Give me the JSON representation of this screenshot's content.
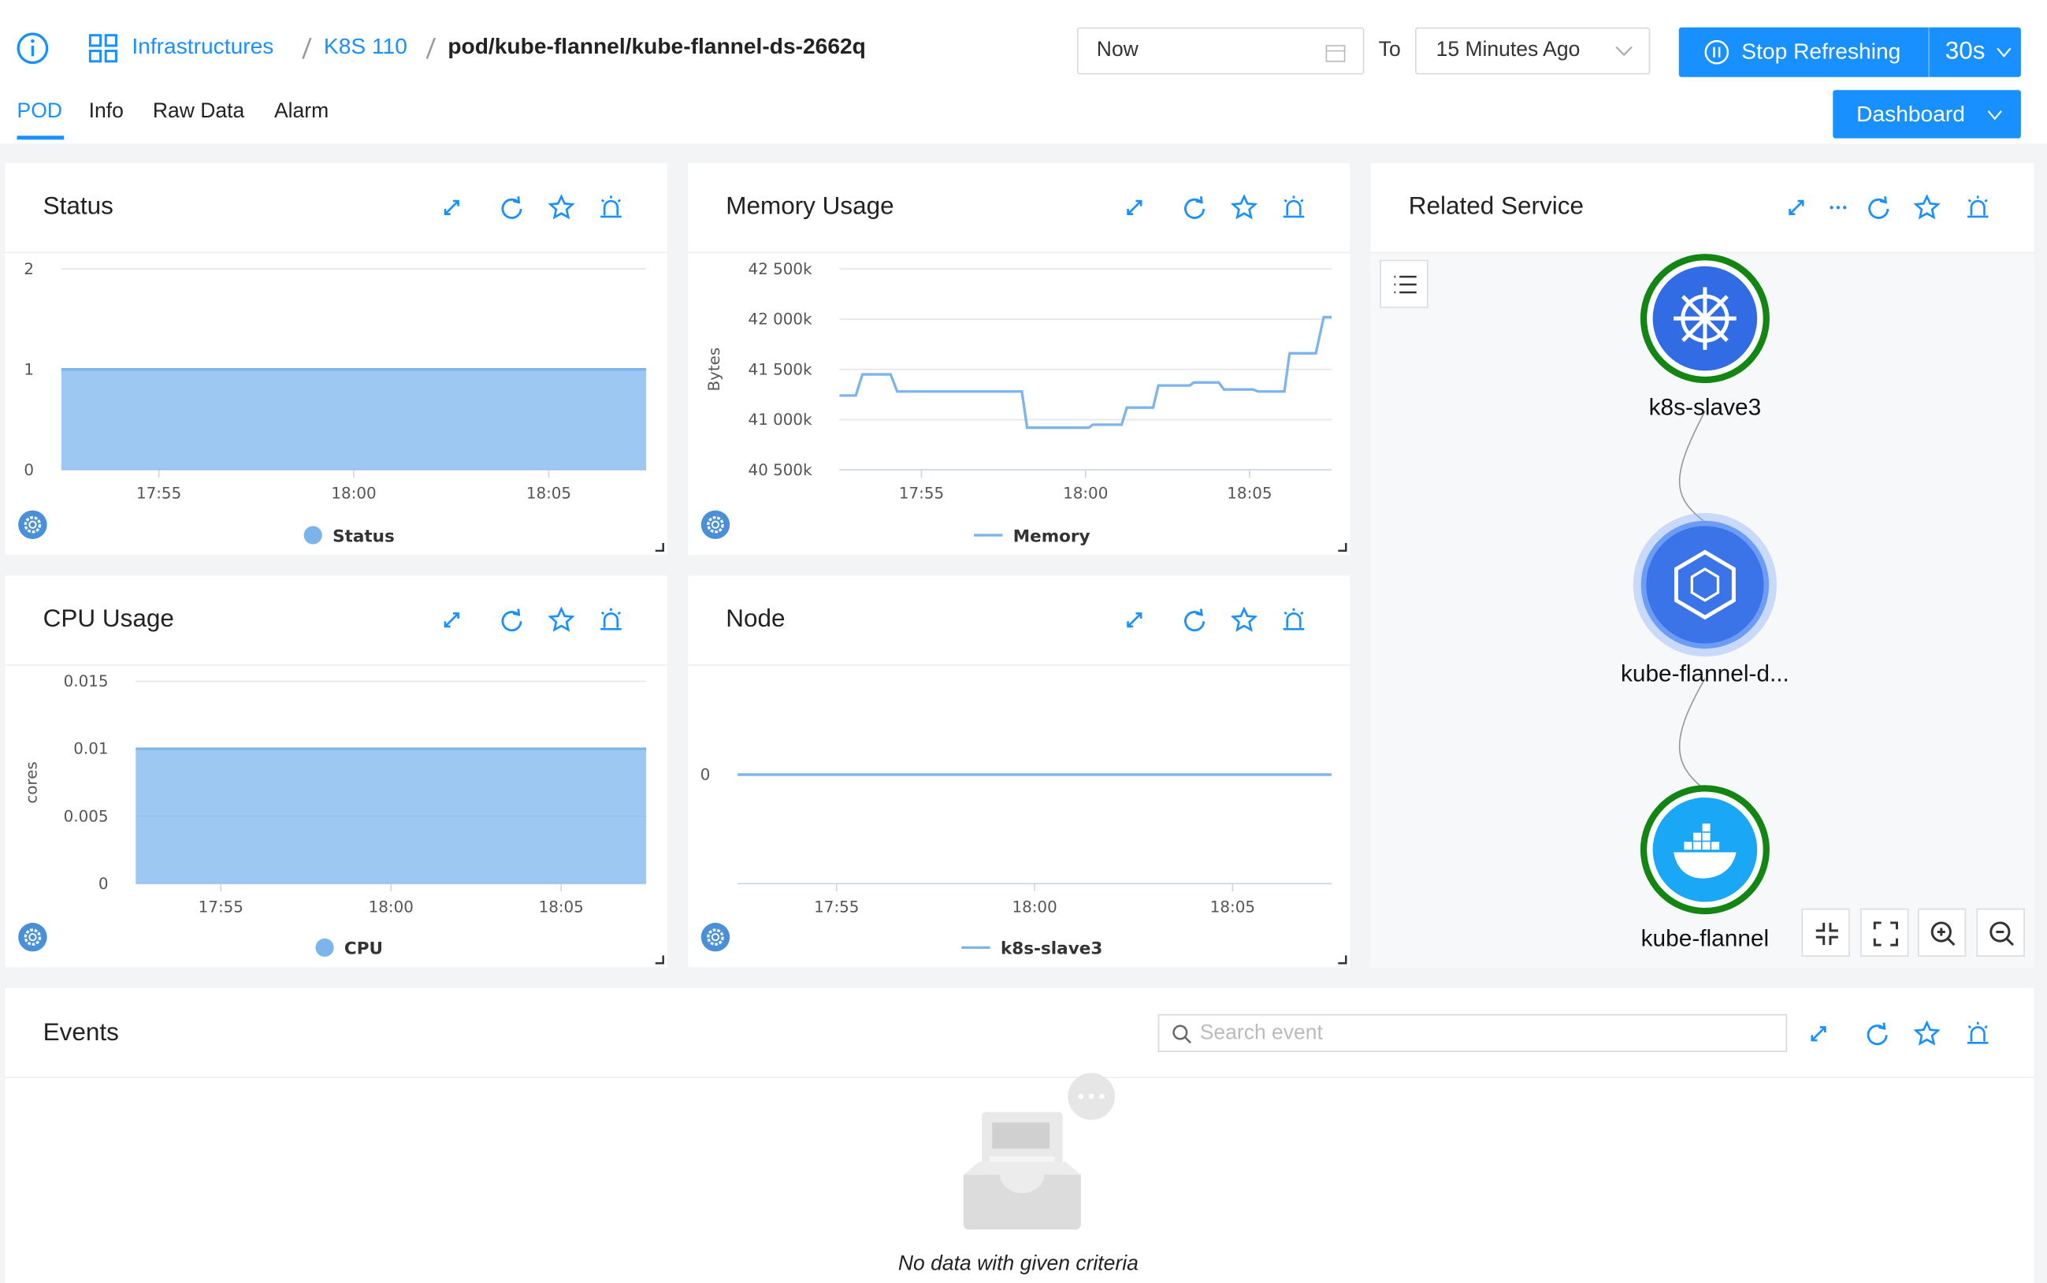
{
  "header": {
    "breadcrumb": [
      "Infrastructures",
      "K8S 110",
      "pod/kube-flannel/kube-flannel-ds-2662q"
    ],
    "time_from": "Now",
    "time_to_label": "To",
    "time_to": "15 Minutes Ago",
    "refresh_button": "Stop Refreshing",
    "refresh_interval": "30s",
    "dashboard_button": "Dashboard"
  },
  "tabs": [
    "POD",
    "Info",
    "Raw Data",
    "Alarm"
  ],
  "panels": [
    {
      "title": "Status",
      "chart": {
        "type": "area",
        "x": [
          1072.5,
          1073.5,
          1074.5,
          1075.5,
          1076.5,
          1077.5,
          1078.5,
          1079.5,
          1080.5,
          1081.5,
          1082.5,
          1083.5,
          1084.5,
          1085.5,
          1086.5,
          1087.5
        ],
        "series": [
          {
            "name": "Status",
            "color": "#7cb5ec",
            "values": [
              1,
              1,
              1,
              1,
              1,
              1,
              1,
              1,
              1,
              1,
              1,
              1,
              1,
              1,
              1,
              1
            ]
          }
        ],
        "xlim": [
          1072.5,
          1087.5
        ],
        "xticks": [
          {
            "value": 1075,
            "label": "17:55"
          },
          {
            "value": 1080,
            "label": "18:00"
          },
          {
            "value": 1085,
            "label": "18:05"
          }
        ],
        "ylim": [
          0,
          2
        ],
        "yticks": [
          0,
          1,
          2
        ]
      }
    },
    {
      "title": "Memory Usage",
      "chart": {
        "type": "line",
        "ylabel": "Bytes",
        "x": [
          1072.5,
          1073,
          1073.2,
          1074.06,
          1074.26,
          1078.06,
          1078.22,
          1080.1,
          1080.22,
          1081.1,
          1081.26,
          1082.06,
          1082.22,
          1083.18,
          1083.3,
          1084.06,
          1084.22,
          1085.1,
          1085.26,
          1086.06,
          1086.22,
          1087.02,
          1087.26,
          1087.5
        ],
        "series": [
          {
            "name": "Memory",
            "color": "#7cb5ec",
            "values": [
              41240000,
              41240000,
              41450000,
              41450000,
              41280000,
              41280000,
              40920000,
              40920000,
              40950000,
              40950000,
              41120000,
              41120000,
              41340000,
              41340000,
              41370000,
              41370000,
              41300000,
              41300000,
              41280000,
              41280000,
              41660000,
              41660000,
              42020000,
              42020000
            ]
          }
        ],
        "xlim": [
          1072.5,
          1087.5
        ],
        "xticks": [
          {
            "value": 1075,
            "label": "17:55"
          },
          {
            "value": 1080,
            "label": "18:00"
          },
          {
            "value": 1085,
            "label": "18:05"
          }
        ],
        "ylim": [
          40500000,
          42500000
        ],
        "yticks": [
          {
            "value": 40500000,
            "label": "40 500k"
          },
          {
            "value": 41000000,
            "label": "41 000k"
          },
          {
            "value": 41500000,
            "label": "41 500k"
          },
          {
            "value": 42000000,
            "label": "42 000k"
          },
          {
            "value": 42500000,
            "label": "42 500k"
          }
        ]
      }
    },
    {
      "title": "CPU Usage",
      "chart": {
        "type": "area",
        "ylabel": "cores",
        "x": [
          1072.5,
          1073.5,
          1074.5,
          1075.5,
          1076.5,
          1077.5,
          1078.5,
          1079.5,
          1080.5,
          1081.5,
          1082.5,
          1083.5,
          1084.5,
          1085.5,
          1086.5,
          1087.5
        ],
        "series": [
          {
            "name": "CPU",
            "color": "#7cb5ec",
            "values": [
              0.01,
              0.01,
              0.01,
              0.01,
              0.01,
              0.01,
              0.01,
              0.01,
              0.01,
              0.01,
              0.01,
              0.01,
              0.01,
              0.01,
              0.01,
              0.01
            ]
          }
        ],
        "xlim": [
          1072.5,
          1087.5
        ],
        "xticks": [
          {
            "value": 1075,
            "label": "17:55"
          },
          {
            "value": 1080,
            "label": "18:00"
          },
          {
            "value": 1085,
            "label": "18:05"
          }
        ],
        "ylim": [
          0,
          0.015
        ],
        "yticks": [
          0,
          0.005,
          0.01,
          0.015
        ]
      }
    },
    {
      "title": "Node",
      "chart": {
        "type": "line",
        "x": [
          1072.5,
          1073.5,
          1074.5,
          1075.5,
          1076.5,
          1077.5,
          1078.5,
          1079.5,
          1080.5,
          1081.5,
          1082.5,
          1083.5,
          1084.5,
          1085.5,
          1086.5,
          1087.5
        ],
        "series": [
          {
            "name": "k8s-slave3",
            "color": "#7cb5ec",
            "values": [
              0,
              0,
              0,
              0,
              0,
              0,
              0,
              0,
              0,
              0,
              0,
              0,
              0,
              0,
              0,
              0
            ]
          }
        ],
        "xlim": [
          1072.5,
          1087.5
        ],
        "xticks": [
          {
            "value": 1075,
            "label": "17:55"
          },
          {
            "value": 1080,
            "label": "18:00"
          },
          {
            "value": 1085,
            "label": "18:05"
          }
        ],
        "ylim": [
          -1,
          1
        ],
        "yticks": [
          0
        ]
      }
    }
  ],
  "related_service": {
    "title": "Related Service",
    "nodes": [
      "k8s-slave3",
      "kube-flannel-d...",
      "kube-flannel"
    ]
  },
  "events": {
    "title": "Events",
    "search_placeholder": "Search event",
    "empty_text": "No data with given criteria"
  }
}
